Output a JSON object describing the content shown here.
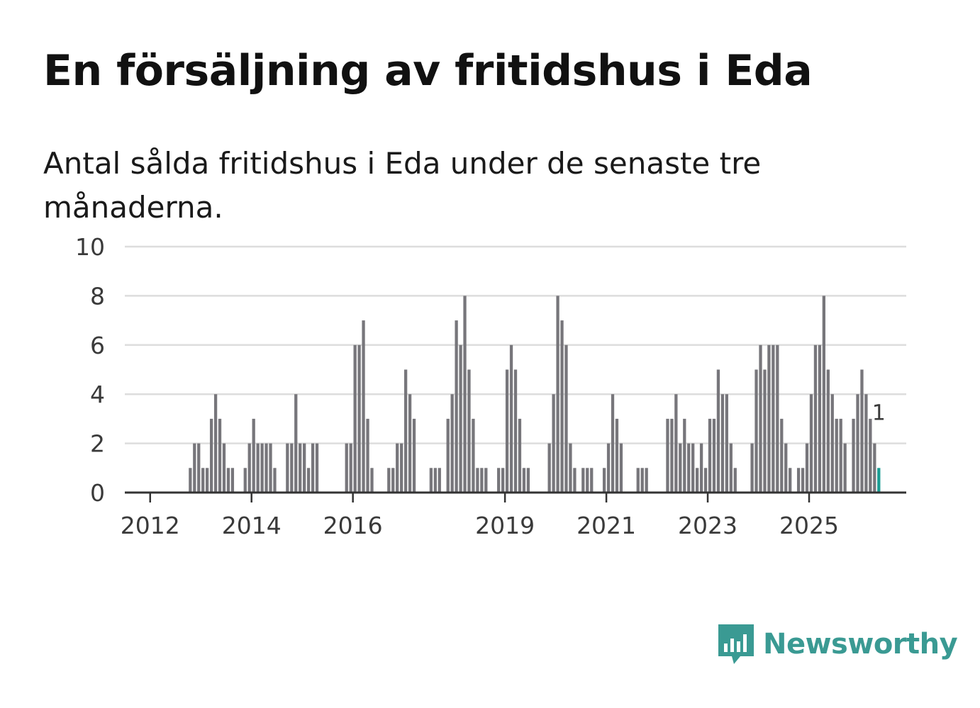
{
  "header": {
    "title": "En försäljning av fritidshus i Eda",
    "subtitle": "Antal sålda fritidshus i Eda under de senaste tre månaderna."
  },
  "brand": {
    "name": "Newsworthy",
    "icon": "newsworthy-logo-icon",
    "color": "#3a9a93"
  },
  "colors": {
    "bar": "#77767b",
    "highlight": "#1a9c93",
    "grid": "#dddddd",
    "axis": "#333333"
  },
  "chart_data": {
    "type": "bar",
    "title": "En försäljning av fritidshus i Eda",
    "xlabel": "",
    "ylabel": "",
    "ylim": [
      0,
      10
    ],
    "yticks": [
      "0",
      "2",
      "4",
      "6",
      "8",
      "10"
    ],
    "x_start": "2011-07",
    "x_end": "2026-12",
    "xticks": [
      {
        "label": "2012",
        "month": "2012-01"
      },
      {
        "label": "2014",
        "month": "2014-01"
      },
      {
        "label": "2016",
        "month": "2016-01"
      },
      {
        "label": "2019",
        "month": "2019-01"
      },
      {
        "label": "2021",
        "month": "2021-01"
      },
      {
        "label": "2023",
        "month": "2023-01"
      },
      {
        "label": "2025",
        "month": "2025-01"
      }
    ],
    "first_month": "2011-11",
    "values": [
      0,
      0,
      0,
      0,
      0,
      0,
      0,
      0,
      0,
      0,
      0,
      1,
      2,
      2,
      1,
      1,
      3,
      4,
      3,
      2,
      1,
      1,
      0,
      0,
      1,
      2,
      3,
      2,
      2,
      2,
      2,
      1,
      0,
      0,
      2,
      2,
      4,
      2,
      2,
      1,
      2,
      2,
      0,
      0,
      0,
      0,
      0,
      0,
      2,
      2,
      6,
      6,
      7,
      3,
      1,
      0,
      0,
      0,
      1,
      1,
      2,
      2,
      5,
      4,
      3,
      0,
      0,
      0,
      1,
      1,
      1,
      0,
      3,
      4,
      7,
      6,
      8,
      5,
      3,
      1,
      1,
      1,
      0,
      0,
      1,
      1,
      5,
      6,
      5,
      3,
      1,
      1,
      0,
      0,
      0,
      0,
      2,
      4,
      8,
      7,
      6,
      2,
      1,
      0,
      1,
      1,
      1,
      0,
      0,
      1,
      2,
      4,
      3,
      2,
      0,
      0,
      0,
      1,
      1,
      1,
      0,
      0,
      0,
      0,
      3,
      3,
      4,
      2,
      3,
      2,
      2,
      1,
      2,
      1,
      3,
      3,
      5,
      4,
      4,
      2,
      1,
      0,
      0,
      0,
      2,
      5,
      6,
      5,
      6,
      6,
      6,
      3,
      2,
      1,
      0,
      1,
      1,
      2,
      4,
      6,
      6,
      8,
      5,
      4,
      3,
      3,
      2,
      0,
      3,
      4,
      5,
      4,
      3,
      2,
      1
    ],
    "annotation": {
      "label": "1",
      "value": 1,
      "note": "latest month highlighted"
    }
  }
}
